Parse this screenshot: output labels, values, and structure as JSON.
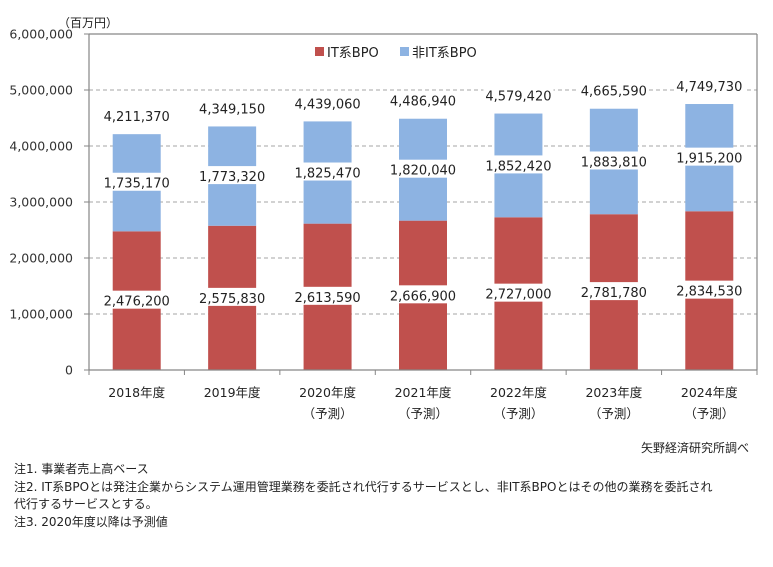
{
  "chart_data": {
    "type": "bar",
    "stacked": true,
    "title": "",
    "unit_label": "（百万円）",
    "xlabel": "",
    "ylabel": "",
    "ylim": [
      0,
      6000000
    ],
    "yticks": [
      0,
      1000000,
      2000000,
      3000000,
      4000000,
      5000000,
      6000000
    ],
    "ytick_labels": [
      "0",
      "1,000,000",
      "2,000,000",
      "3,000,000",
      "4,000,000",
      "5,000,000",
      "6,000,000"
    ],
    "grid": true,
    "legend_position": "top-center",
    "categories": [
      {
        "year": "2018年度",
        "note": ""
      },
      {
        "year": "2019年度",
        "note": ""
      },
      {
        "year": "2020年度",
        "note": "（予測）"
      },
      {
        "year": "2021年度",
        "note": "（予測）"
      },
      {
        "year": "2022年度",
        "note": "（予測）"
      },
      {
        "year": "2023年度",
        "note": "（予測）"
      },
      {
        "year": "2024年度",
        "note": "（予測）"
      }
    ],
    "series": [
      {
        "name": "IT系BPO",
        "color": "#C0504D",
        "values": [
          2476200,
          2575830,
          2613590,
          2666900,
          2727000,
          2781780,
          2834530
        ],
        "labels": [
          "2,476,200",
          "2,575,830",
          "2,613,590",
          "2,666,900",
          "2,727,000",
          "2,781,780",
          "2,834,530"
        ]
      },
      {
        "name": "非IT系BPO",
        "color": "#8DB3E2",
        "values": [
          1735170,
          1773320,
          1825470,
          1820040,
          1852420,
          1883810,
          1915200
        ],
        "labels": [
          "1,735,170",
          "1,773,320",
          "1,825,470",
          "1,820,040",
          "1,852,420",
          "1,883,810",
          "1,915,200"
        ]
      }
    ],
    "totals": [
      4211370,
      4349150,
      4439060,
      4486940,
      4579420,
      4665590,
      4749730
    ],
    "total_labels": [
      "4,211,370",
      "4,349,150",
      "4,439,060",
      "4,486,940",
      "4,579,420",
      "4,665,590",
      "4,749,730"
    ]
  },
  "source": "矢野経済研究所調べ",
  "notes": [
    "注1.  事業者売上高ベース",
    "注2.  IT系BPOとは発注企業からシステム運用管理業務を委託され代行するサービスとし、非IT系BPOとはその他の業務を委託され",
    "代行するサービスとする。",
    "注3.  2020年度以降は予測値"
  ]
}
